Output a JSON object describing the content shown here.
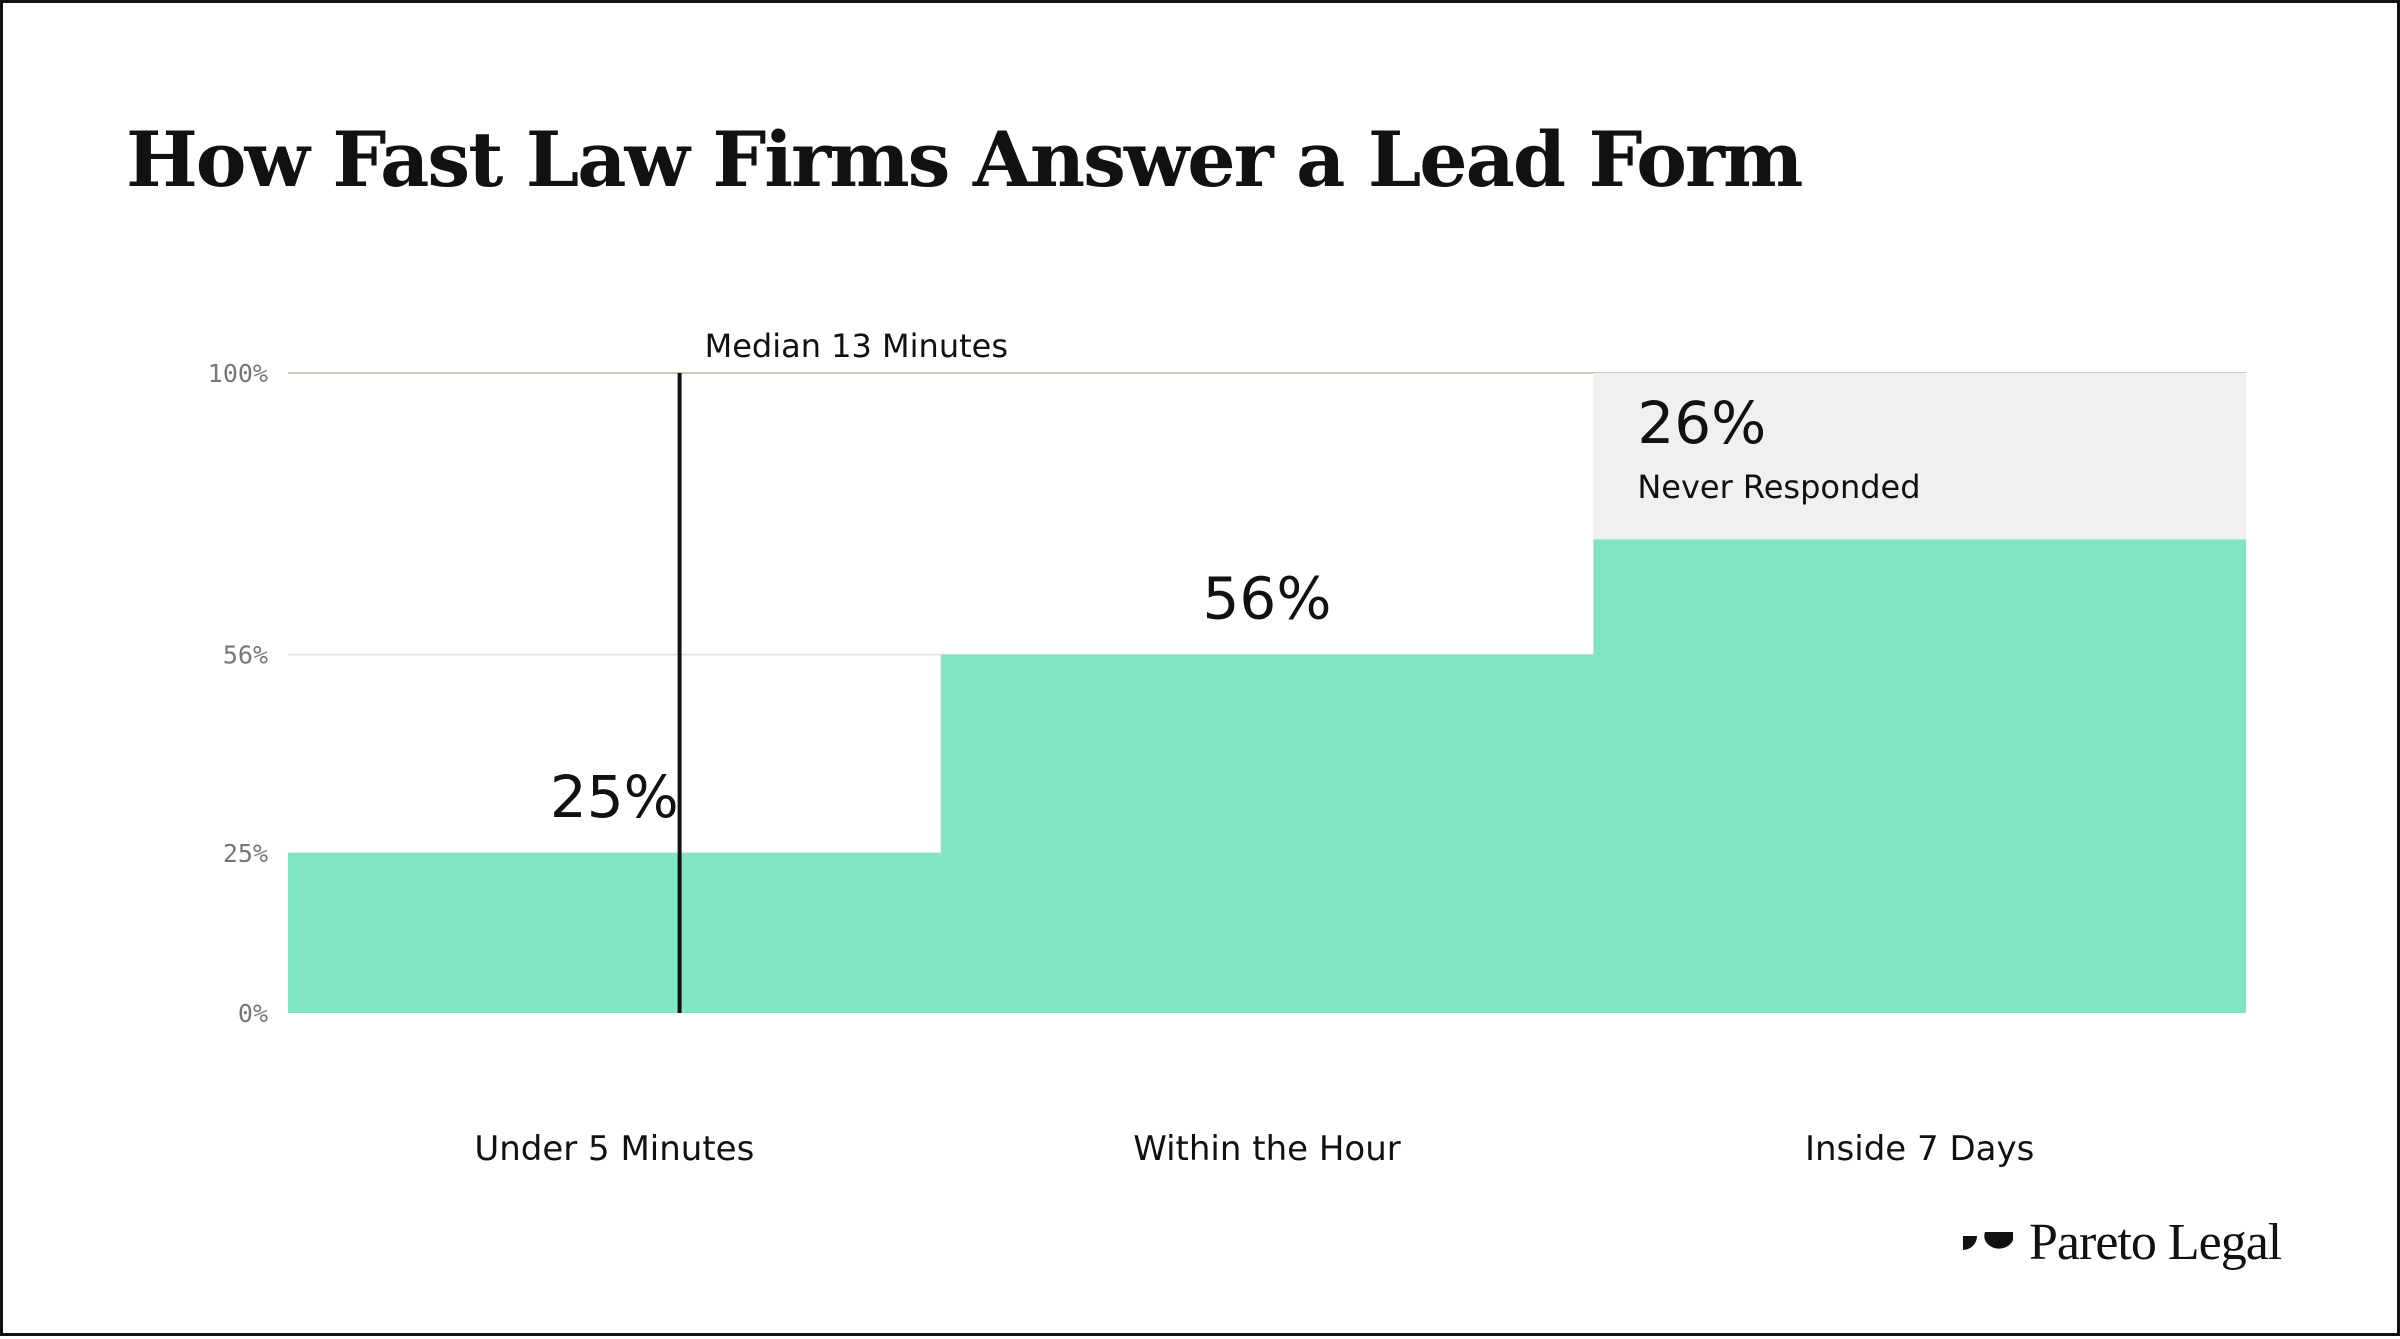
{
  "header": {
    "title": "How Fast Law Firms Answer a Lead Form"
  },
  "brand": {
    "name": "Pareto Legal",
    "logo_icon": "pareto-legal-logo-icon"
  },
  "colors": {
    "fill": "#80E5C3",
    "never_responded": "#F0F0F0",
    "median_line": "#111111",
    "gridline": "#CCCCBB"
  },
  "chart_data": {
    "type": "area",
    "title": "How Fast Law Firms Answer a Lead Form",
    "xlabel": "",
    "ylabel": "",
    "ylim": [
      0,
      100
    ],
    "yticks": [
      {
        "value": 0,
        "label": "0%"
      },
      {
        "value": 25,
        "label": "25%"
      },
      {
        "value": 56,
        "label": "56%"
      },
      {
        "value": 100,
        "label": "100%"
      }
    ],
    "categories": [
      "Under 5 Minutes",
      "Within the Hour",
      "Inside 7 Days"
    ],
    "values": [
      25,
      56,
      74
    ],
    "value_labels": [
      "25%",
      "56%",
      ""
    ],
    "never_responded": {
      "value": 26,
      "label": "26%",
      "text": "Never Responded"
    },
    "median": {
      "label": "Median 13 Minutes",
      "position": 0.2
    },
    "grid": true,
    "legend": "none"
  }
}
